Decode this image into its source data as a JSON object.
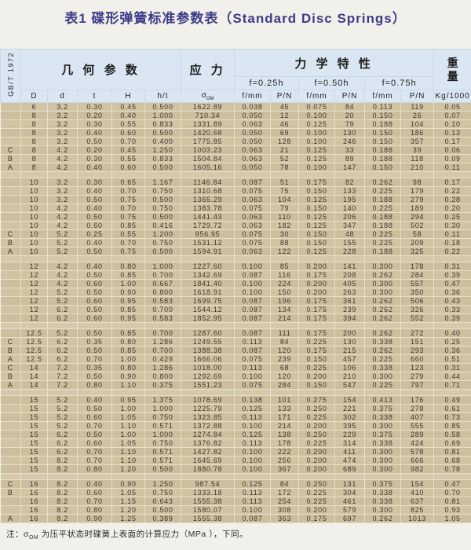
{
  "title": "表1 碟形弹簧标准参数表（Standard Disc Springs）",
  "colors": {
    "title_text": "#3d3c88",
    "header_bg": "#dae7f3",
    "body_bg": "#d1c4a3",
    "grid_line": "#e6dfca",
    "page_bg": "#f2f0ea"
  },
  "table": {
    "side_label": "GB/T 1972",
    "header_groups": {
      "geometry": "几 何 参 数",
      "stress": "应 力",
      "mechanical": "力 学 特 性",
      "weight": "重量"
    },
    "subheaders": [
      "f=0.25h",
      "f=0.50h",
      "f=0.75h"
    ],
    "columns": {
      "c0": "D",
      "c1": "d",
      "c2": "t",
      "c3": "H",
      "c4": "h/t",
      "sigma": "σ",
      "sigma_sub": "OM",
      "f": "f/mm",
      "p": "P/N",
      "kg": "Kg/1000"
    },
    "groups": [
      [
        [
          "",
          "6",
          "3.2",
          "0.30",
          "0.45",
          "0.500",
          "1622.89",
          "0.038",
          "45",
          "0.075",
          "84",
          "0.113",
          "119",
          "0.05"
        ],
        [
          "",
          "8",
          "3.2",
          "0.20",
          "0.40",
          "1.000",
          "710.34",
          "0.050",
          "12",
          "0.100",
          "20",
          "0.150",
          "26",
          "0.07"
        ],
        [
          "",
          "8",
          "3.2",
          "0.30",
          "0.55",
          "0.833",
          "1331.89",
          "0.063",
          "46",
          "0.125",
          "79",
          "0.188",
          "104",
          "0.10"
        ],
        [
          "",
          "8",
          "3.2",
          "0.40",
          "0.60",
          "0.500",
          "1420.68",
          "0.050",
          "69",
          "0.100",
          "130",
          "0.150",
          "186",
          "0.13"
        ],
        [
          "",
          "8",
          "3.2",
          "0.50",
          "0.70",
          "0.400",
          "1775.85",
          "0.050",
          "128",
          "0.100",
          "246",
          "0.150",
          "357",
          "0.17"
        ],
        [
          "C",
          "8",
          "4.2",
          "0.20",
          "0.45",
          "1.250",
          "1003.23",
          "0.063",
          "21",
          "0.125",
          "33",
          "0.188",
          "39",
          "0.06"
        ],
        [
          "B",
          "8",
          "4.2",
          "0.30",
          "0.55",
          "0.833",
          "1504.84",
          "0.063",
          "52",
          "0.125",
          "89",
          "0.188",
          "118",
          "0.09"
        ],
        [
          "A",
          "8",
          "4.2",
          "0.40",
          "0.60",
          "0.500",
          "1605.16",
          "0.050",
          "78",
          "0.100",
          "147",
          "0.150",
          "210",
          "0.11"
        ]
      ],
      [
        [
          "",
          "10",
          "3.2",
          "0.30",
          "0.65",
          "1.167",
          "1146.84",
          "0.087",
          "51",
          "0.175",
          "82",
          "0.262",
          "98",
          "0.17"
        ],
        [
          "",
          "10",
          "3.2",
          "0.40",
          "0.70",
          "0.750",
          "1310.68",
          "0.075",
          "75",
          "0.150",
          "133",
          "0.225",
          "179",
          "0.22"
        ],
        [
          "",
          "10",
          "3.2",
          "0.50",
          "0.75",
          "0.500",
          "1365.29",
          "0.063",
          "104",
          "0.125",
          "195",
          "0.188",
          "279",
          "0.28"
        ],
        [
          "",
          "10",
          "4.2",
          "0.40",
          "0.70",
          "0.750",
          "1383.78",
          "0.075",
          "79",
          "0.150",
          "140",
          "0.225",
          "189",
          "0.20"
        ],
        [
          "",
          "10",
          "4.2",
          "0.50",
          "0.75",
          "0.500",
          "1441.43",
          "0.063",
          "110",
          "0.125",
          "206",
          "0.188",
          "294",
          "0.25"
        ],
        [
          "",
          "10",
          "4.2",
          "0.60",
          "0.85",
          "0.416",
          "1729.72",
          "0.063",
          "182",
          "0.125",
          "347",
          "0.188",
          "502",
          "0.30"
        ],
        [
          "C",
          "10",
          "5.2",
          "0.25",
          "0.55",
          "1.200",
          "956.95",
          "0.075",
          "30",
          "0.150",
          "48",
          "0.225",
          "58",
          "0.11"
        ],
        [
          "B",
          "10",
          "5.2",
          "0.40",
          "0.70",
          "0.750",
          "1531.12",
          "0.075",
          "88",
          "0.150",
          "155",
          "0.225",
          "209",
          "0.18"
        ],
        [
          "A",
          "10",
          "5.2",
          "0.50",
          "0.75",
          "0.500",
          "1594.91",
          "0.063",
          "122",
          "0.125",
          "228",
          "0.188",
          "325",
          "0.22"
        ]
      ],
      [
        [
          "",
          "12",
          "4.2",
          "0.40",
          "0.80",
          "1.000",
          "1227.60",
          "0.100",
          "85",
          "0.200",
          "141",
          "0.300",
          "178",
          "0.31"
        ],
        [
          "",
          "12",
          "4.2",
          "0.50",
          "0.85",
          "0.700",
          "1342.69",
          "0.087",
          "116",
          "0.175",
          "208",
          "0.262",
          "284",
          "0.39"
        ],
        [
          "",
          "12",
          "4.2",
          "0.60",
          "1.00",
          "0.667",
          "1841.40",
          "0.100",
          "224",
          "0.200",
          "405",
          "0.300",
          "557",
          "0.47"
        ],
        [
          "",
          "12",
          "5.2",
          "0.50",
          "0.90",
          "0.800",
          "1618.91",
          "0.100",
          "150",
          "0.200",
          "263",
          "0.300",
          "350",
          "0.36"
        ],
        [
          "",
          "12",
          "5.2",
          "0.60",
          "0.95",
          "0.583",
          "1699.75",
          "0.087",
          "196",
          "0.175",
          "361",
          "0.262",
          "506",
          "0.43"
        ],
        [
          "",
          "12",
          "6.2",
          "0.50",
          "0.85",
          "0.700",
          "1544.12",
          "0.087",
          "134",
          "0.175",
          "239",
          "0.262",
          "326",
          "0.33"
        ],
        [
          "",
          "12",
          "6.2",
          "0.60",
          "0.95",
          "0.583",
          "1852.95",
          "0.087",
          "214",
          "0.175",
          "394",
          "0.262",
          "552",
          "0.39"
        ]
      ],
      [
        [
          "",
          "12.5",
          "5.2",
          "0.50",
          "0.85",
          "0.700",
          "1287.60",
          "0.087",
          "111",
          "0.175",
          "200",
          "0.262",
          "272",
          "0.40"
        ],
        [
          "C",
          "12.5",
          "6.2",
          "0.35",
          "0.80",
          "1.286",
          "1249.55",
          "0.113",
          "84",
          "0.225",
          "130",
          "0.338",
          "151",
          "0.25"
        ],
        [
          "B",
          "12.5",
          "6.2",
          "0.50",
          "0.85",
          "0.700",
          "1388.38",
          "0.087",
          "120",
          "0.175",
          "215",
          "0.262",
          "293",
          "0.36"
        ],
        [
          "A",
          "12.5",
          "6.2",
          "0.70",
          "1.00",
          "0.429",
          "1666.06",
          "0.075",
          "239",
          "0.150",
          "457",
          "0.225",
          "660",
          "0.51"
        ],
        [
          "C",
          "14",
          "7.2",
          "0.35",
          "0.80",
          "1.286",
          "1018.00",
          "0.113",
          "68",
          "0.225",
          "106",
          "0.338",
          "123",
          "0.31"
        ],
        [
          "B",
          "14",
          "7.2",
          "0.50",
          "0.90",
          "0.800",
          "1292.69",
          "0.100",
          "120",
          "0.200",
          "210",
          "0.300",
          "279",
          "0.44"
        ],
        [
          "A",
          "14",
          "7.2",
          "0.80",
          "1.10",
          "0.375",
          "1551.23",
          "0.075",
          "284",
          "0.150",
          "547",
          "0.225",
          "797",
          "0.71"
        ]
      ],
      [
        [
          "",
          "15",
          "5.2",
          "0.40",
          "0.95",
          "1.375",
          "1078.69",
          "0.138",
          "101",
          "0.275",
          "154",
          "0.413",
          "176",
          "0.49"
        ],
        [
          "",
          "15",
          "5.2",
          "0.50",
          "1.00",
          "1.000",
          "1225.79",
          "0.125",
          "133",
          "0.250",
          "221",
          "0.375",
          "278",
          "0.61"
        ],
        [
          "",
          "15",
          "5.2",
          "0.60",
          "1.05",
          "0.750",
          "1323.85",
          "0.113",
          "171",
          "0.225",
          "302",
          "0.338",
          "407",
          "0.73"
        ],
        [
          "",
          "15",
          "5.2",
          "0.70",
          "1.10",
          "0.571",
          "1372.88",
          "0.100",
          "214",
          "0.200",
          "395",
          "0.300",
          "555",
          "0.85"
        ],
        [
          "",
          "15",
          "6.2",
          "0.50",
          "1.00",
          "1.000",
          "1274.84",
          "0.125",
          "138",
          "0.250",
          "229",
          "0.375",
          "289",
          "0.58"
        ],
        [
          "",
          "15",
          "6.2",
          "0.60",
          "1.05",
          "0.750",
          "1376.82",
          "0.113",
          "178",
          "0.225",
          "314",
          "0.338",
          "424",
          "0.69"
        ],
        [
          "",
          "15",
          "6.2",
          "0.70",
          "1.10",
          "0.571",
          "1427.82",
          "0.100",
          "222",
          "0.200",
          "411",
          "0.300",
          "578",
          "0.81"
        ],
        [
          "",
          "15",
          "8.2",
          "0.70",
          "1.10",
          "0.571",
          "1645.69",
          "0.100",
          "256",
          "0.200",
          "474",
          "0.300",
          "666",
          "0.68"
        ],
        [
          "",
          "15",
          "8.2",
          "0.80",
          "1.20",
          "0.500",
          "1880.78",
          "0.100",
          "367",
          "0.200",
          "689",
          "0.300",
          "982",
          "0.78"
        ]
      ],
      [
        [
          "C",
          "16",
          "8.2",
          "0.40",
          "0.90",
          "1.250",
          "987.54",
          "0.125",
          "84",
          "0.250",
          "131",
          "0.375",
          "154",
          "0.47"
        ],
        [
          "B",
          "16",
          "8.2",
          "0.60",
          "1.05",
          "0.750",
          "1333.18",
          "0.113",
          "172",
          "0.225",
          "304",
          "0.338",
          "410",
          "0.70"
        ],
        [
          "",
          "16",
          "8.2",
          "0.70",
          "1.15",
          "0.643",
          "1555.38",
          "0.113",
          "254",
          "0.225",
          "461",
          "0.338",
          "637",
          "0.81"
        ],
        [
          "",
          "16",
          "8.2",
          "0.80",
          "1.20",
          "0.500",
          "1580.07",
          "0.100",
          "308",
          "0.200",
          "579",
          "0.300",
          "825",
          "0.93"
        ],
        [
          "A",
          "16",
          "8.2",
          "0.90",
          "1.25",
          "0.389",
          "1555.38",
          "0.087",
          "363",
          "0.175",
          "697",
          "0.262",
          "1013",
          "1.05"
        ]
      ]
    ]
  },
  "footnote": {
    "prefix": "注：",
    "sigma": "σ",
    "sigma_sub": "OM",
    "text": "为压平状态时碟簧上表面的计算应力（MPa ），下同。"
  }
}
